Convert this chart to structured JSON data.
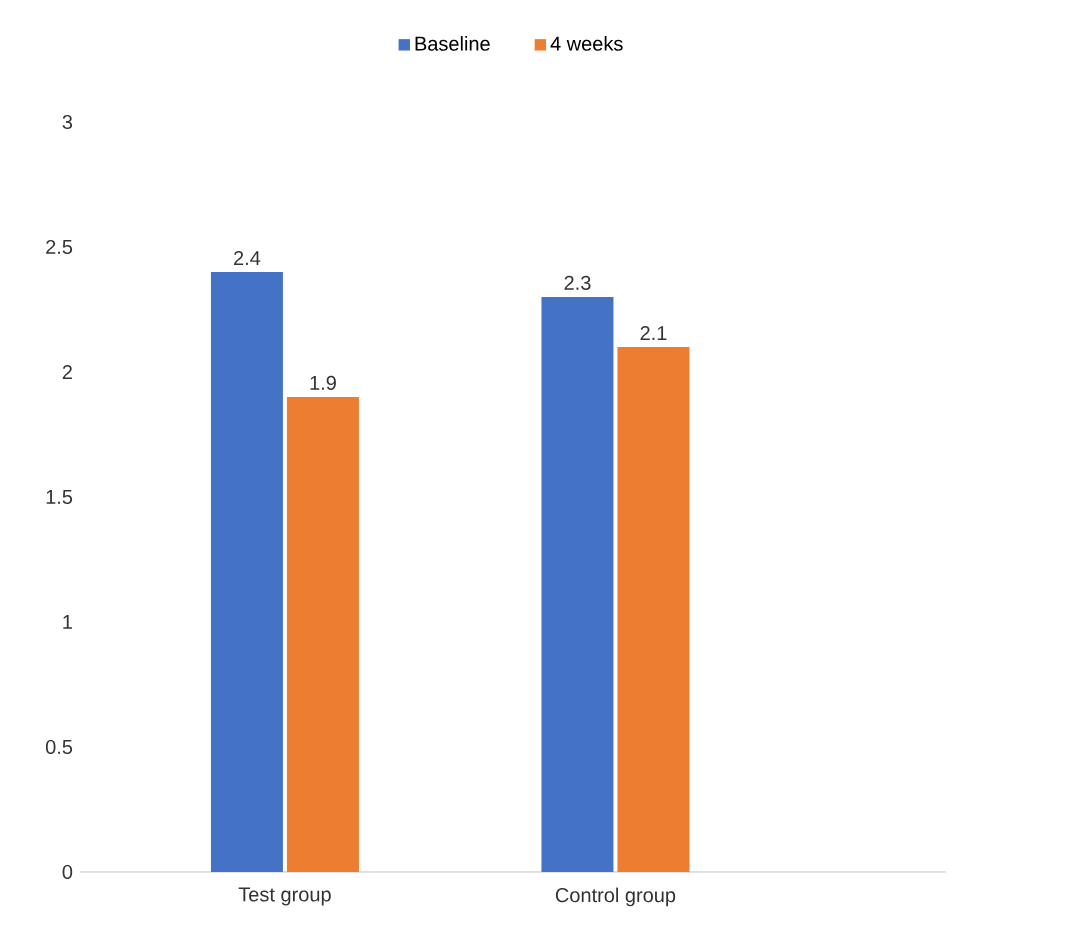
{
  "chart_data": {
    "type": "bar",
    "categories": [
      "Test group",
      "Control group"
    ],
    "series": [
      {
        "name": "Baseline",
        "color": "#4472c4",
        "values": [
          2.4,
          2.3
        ]
      },
      {
        "name": "4 weeks",
        "color": "#ed7d31",
        "values": [
          1.9,
          2.1
        ]
      }
    ],
    "ylim": [
      0,
      3
    ],
    "yticks": [
      0,
      0.5,
      1,
      1.5,
      2,
      2.5,
      3
    ],
    "data_labels": true,
    "legend": "top"
  }
}
